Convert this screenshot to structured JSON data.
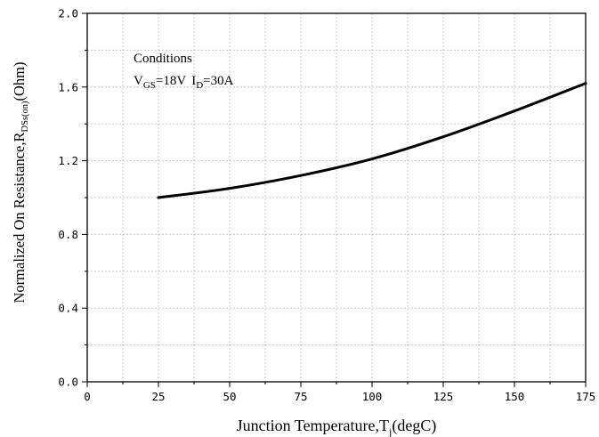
{
  "chart_data": {
    "type": "line",
    "x": [
      25,
      50,
      75,
      100,
      125,
      150,
      175
    ],
    "xlim": [
      0,
      175
    ],
    "ylim": [
      0.0,
      2.0
    ],
    "xticks": [
      "0",
      "25",
      "50",
      "75",
      "100",
      "125",
      "150",
      "175"
    ],
    "yticks": [
      "0.0",
      "0.4",
      "0.8",
      "1.2",
      "1.6",
      "2.0"
    ],
    "grid": true,
    "series": [
      {
        "values": [
          1.0,
          1.05,
          1.12,
          1.21,
          1.33,
          1.47,
          1.62
        ]
      }
    ],
    "xlabel": {
      "main": "Junction Temperature,",
      "symbol": "T",
      "sub": "j",
      "unit": "(degC)"
    },
    "ylabel": {
      "main": "Normalized On Resistance,",
      "symbol": "R",
      "sub": "DSs(on)",
      "unit": "(Ohm)"
    },
    "annotation": {
      "heading": "Conditions",
      "vgs_symbol": "V",
      "vgs_sub": "GS",
      "vgs_value": "=18V",
      "id_symbol": "I",
      "id_sub": "D",
      "id_value": "=30A"
    },
    "colors": {
      "line": "#000000",
      "grid": "#c8c8c8",
      "axis": "#000000"
    }
  }
}
